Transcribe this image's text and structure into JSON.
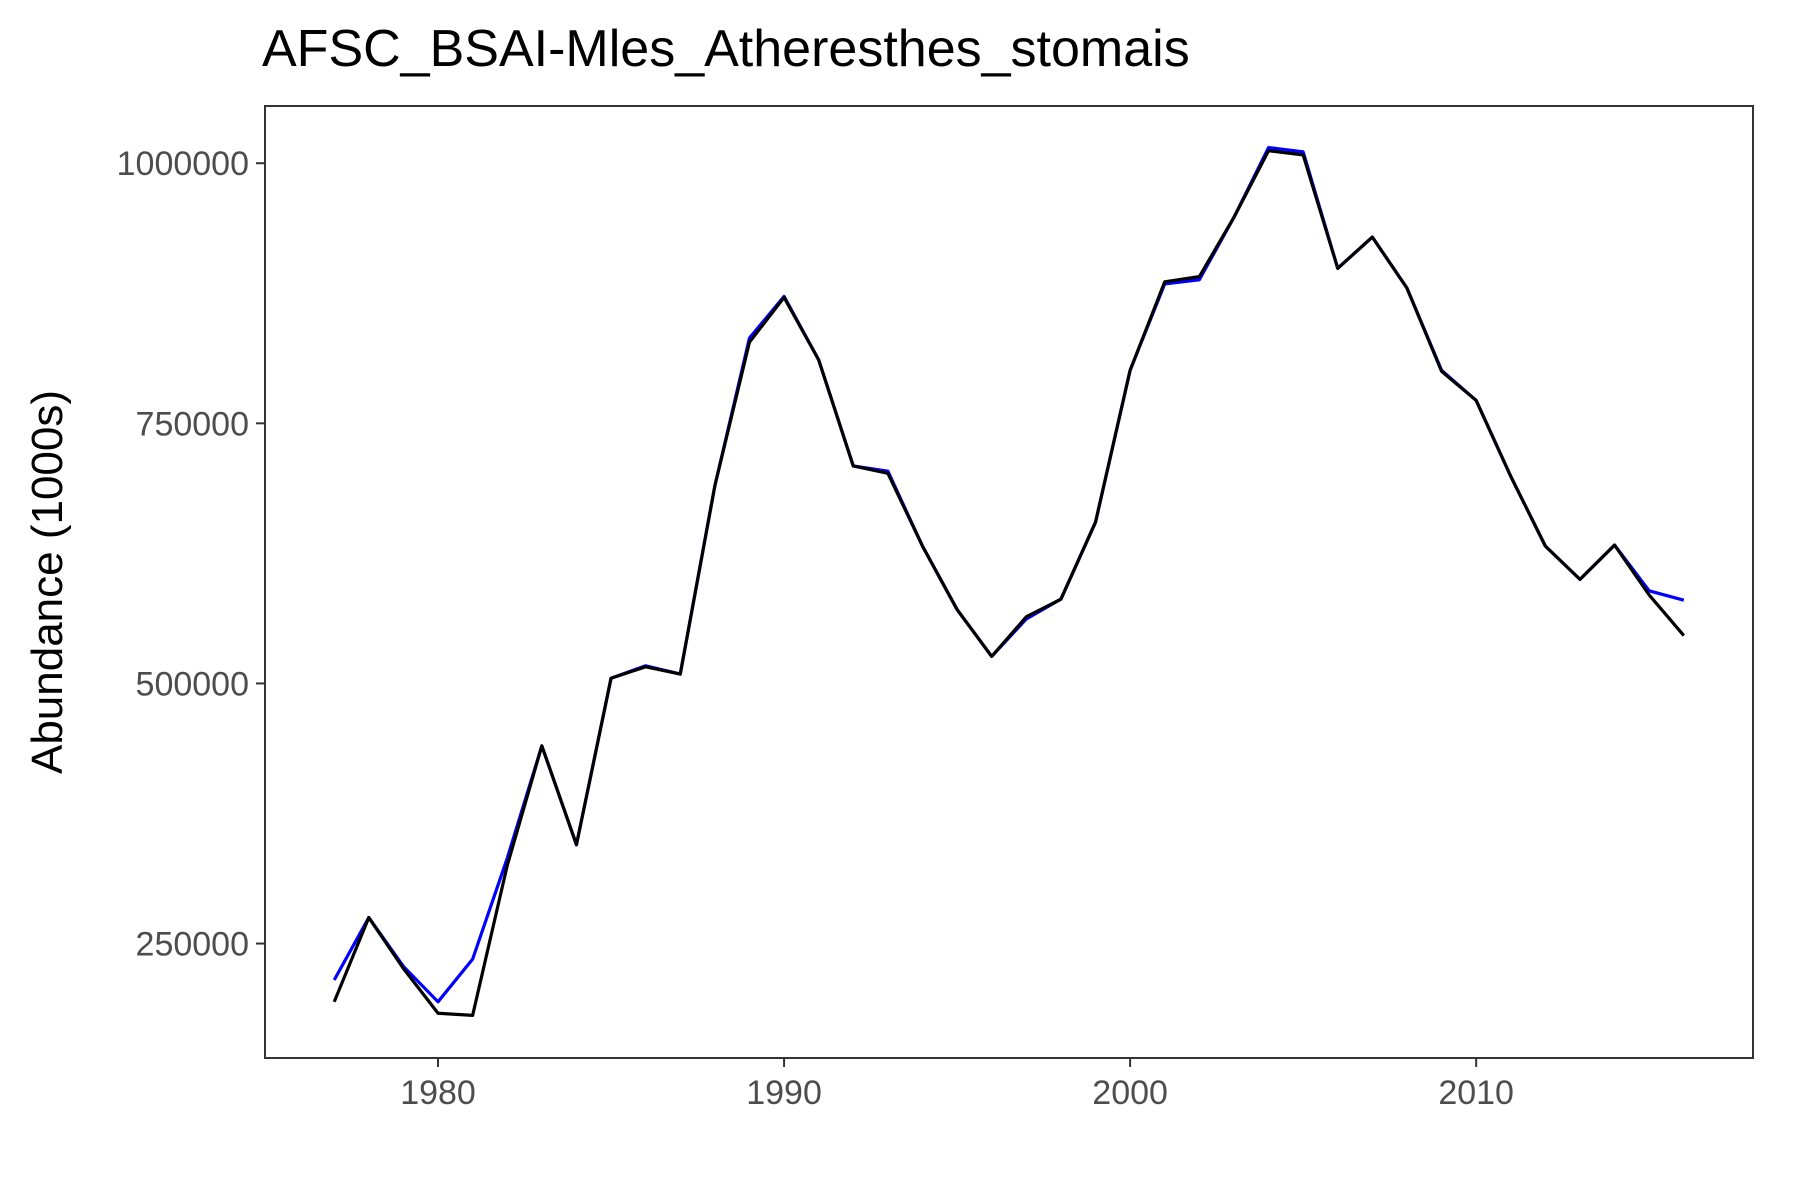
{
  "chart_data": {
    "type": "line",
    "title": "AFSC_BSAI-Mles_Atheresthes_stomais",
    "xlabel": "",
    "ylabel": "Abundance (1000s)",
    "xlim": [
      1975,
      2018
    ],
    "ylim": [
      140000,
      1055000
    ],
    "xticks": [
      1980,
      1990,
      2000,
      2010
    ],
    "xtick_labels": [
      "1980",
      "1990",
      "2000",
      "2010"
    ],
    "yticks": [
      250000,
      500000,
      750000,
      1000000
    ],
    "ytick_labels": [
      "250000",
      "500000",
      "750000",
      "1000000"
    ],
    "grid": false,
    "legend": "none",
    "x": [
      1977,
      1978,
      1979,
      1980,
      1981,
      1982,
      1983,
      1984,
      1985,
      1986,
      1987,
      1988,
      1989,
      1990,
      1991,
      1992,
      1993,
      1994,
      1995,
      1996,
      1997,
      1998,
      1999,
      2000,
      2001,
      2002,
      2003,
      2004,
      2005,
      2006,
      2007,
      2008,
      2009,
      2010,
      2011,
      2012,
      2013,
      2014,
      2015,
      2016
    ],
    "series": [
      {
        "color": "#0000ff",
        "values": [
          215000,
          275000,
          228000,
          194000,
          235000,
          332000,
          440000,
          345000,
          505000,
          517000,
          509000,
          690000,
          832000,
          872000,
          811000,
          709000,
          704000,
          632000,
          571000,
          526000,
          562000,
          581000,
          655000,
          801000,
          884000,
          888000,
          948000,
          1015000,
          1011000,
          899000,
          929000,
          880000,
          801000,
          772000,
          699000,
          632000,
          600000,
          633000,
          589000,
          580000
        ]
      },
      {
        "color": "#000000",
        "values": [
          194000,
          275000,
          226000,
          183000,
          181000,
          325000,
          440000,
          345000,
          505000,
          516000,
          509000,
          690000,
          828000,
          871000,
          811000,
          709000,
          702000,
          632000,
          571000,
          526000,
          564000,
          581000,
          655000,
          801000,
          886000,
          891000,
          948000,
          1012000,
          1008000,
          899000,
          929000,
          880000,
          800000,
          772000,
          699000,
          632000,
          600000,
          633000,
          585000,
          546000
        ]
      }
    ]
  }
}
